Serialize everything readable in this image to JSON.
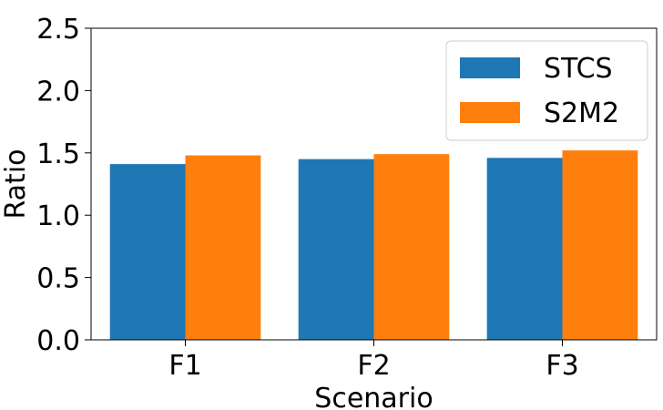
{
  "chart_data": {
    "type": "bar",
    "categories": [
      "F1",
      "F2",
      "F3"
    ],
    "series": [
      {
        "name": "STCS",
        "values": [
          1.41,
          1.45,
          1.46
        ],
        "color": "#1f77b4"
      },
      {
        "name": "S2M2",
        "values": [
          1.48,
          1.49,
          1.52
        ],
        "color": "#ff7f0e"
      }
    ],
    "xlabel": "Scenario",
    "ylabel": "Ratio",
    "ylim": [
      0,
      2.5
    ],
    "yticks": [
      0.0,
      0.5,
      1.0,
      1.5,
      2.0,
      2.5
    ],
    "ytick_labels": [
      "0.0",
      "0.5",
      "1.0",
      "1.5",
      "2.0",
      "2.5"
    ],
    "grid": false,
    "legend_position": "top-right"
  }
}
